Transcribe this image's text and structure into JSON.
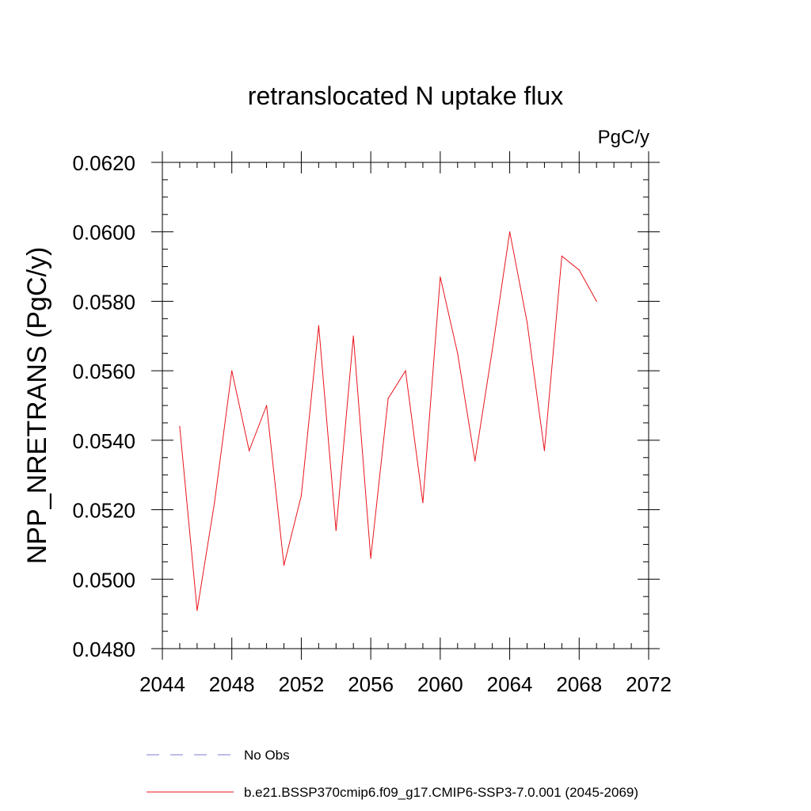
{
  "chart_data": {
    "type": "line",
    "title": "retranslocated N uptake flux",
    "units_label": "PgC/y",
    "xlabel": "",
    "ylabel": "NPP_NRETRANS  (PgC/y)",
    "xlim": [
      2044,
      2072
    ],
    "ylim": [
      0.048,
      0.062
    ],
    "x_ticks": [
      "2044",
      "2048",
      "2052",
      "2056",
      "2060",
      "2064",
      "2068",
      "2072"
    ],
    "y_ticks": [
      "0.0480",
      "0.0500",
      "0.0520",
      "0.0540",
      "0.0560",
      "0.0580",
      "0.0600",
      "0.0620"
    ],
    "grid": false,
    "legend_position": "bottom",
    "series": [
      {
        "name": "No Obs",
        "color": "#7b7bd6",
        "dash": "dashed",
        "x": [],
        "values": []
      },
      {
        "name": "b.e21.BSSP370cmip6.f09_g17.CMIP6-SSP3-7.0.001 (2045-2069)",
        "color": "#e8141b",
        "dash": "solid",
        "x": [
          2045,
          2046,
          2047,
          2048,
          2049,
          2050,
          2051,
          2052,
          2053,
          2054,
          2055,
          2056,
          2057,
          2058,
          2059,
          2060,
          2061,
          2062,
          2063,
          2064,
          2065,
          2066,
          2067,
          2068,
          2069
        ],
        "values": [
          0.0544,
          0.0491,
          0.0522,
          0.056,
          0.0537,
          0.055,
          0.0504,
          0.0524,
          0.0573,
          0.0514,
          0.057,
          0.0506,
          0.0552,
          0.056,
          0.0522,
          0.0587,
          0.0565,
          0.0534,
          0.0566,
          0.06,
          0.0574,
          0.0537,
          0.0593,
          0.0589,
          0.058
        ]
      }
    ]
  }
}
